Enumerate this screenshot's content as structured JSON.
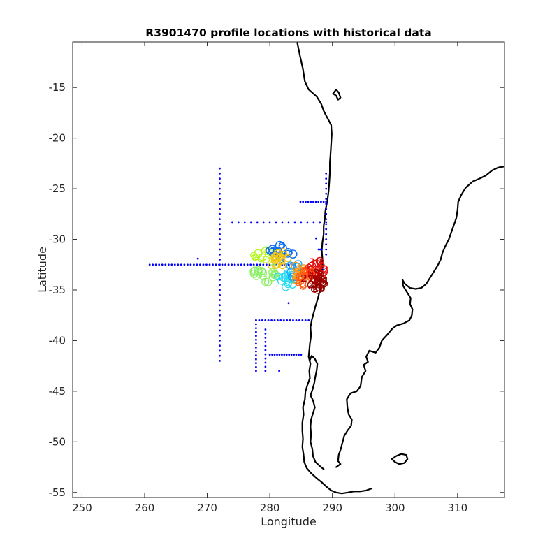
{
  "chart_data": {
    "type": "scatter",
    "title": "R3901470 profile locations with historical data",
    "xlabel": "Longitude",
    "ylabel": "Latitude",
    "xlim": [
      248.5,
      317.5
    ],
    "ylim": [
      -55.5,
      -10.5
    ],
    "xticks": [
      250,
      260,
      270,
      280,
      290,
      300,
      310
    ],
    "yticks": [
      -55,
      -50,
      -45,
      -40,
      -35,
      -30,
      -25,
      -20,
      -15
    ],
    "grid": false,
    "colors": {
      "coastline": "#000000",
      "historical": "#0000ff",
      "axes": "#262626"
    },
    "coastlines": [
      {
        "name": "south-america-west",
        "points": [
          [
            284.4,
            -10.6
          ],
          [
            284.8,
            -11.8
          ],
          [
            285.3,
            -13.2
          ],
          [
            285.6,
            -14.4
          ],
          [
            286.2,
            -15.2
          ],
          [
            287.5,
            -15.9
          ],
          [
            288.2,
            -16.6
          ],
          [
            288.6,
            -17.3
          ],
          [
            289.2,
            -18.0
          ],
          [
            289.8,
            -18.7
          ],
          [
            289.9,
            -19.6
          ],
          [
            289.8,
            -20.6
          ],
          [
            289.7,
            -21.6
          ],
          [
            289.6,
            -22.4
          ],
          [
            289.6,
            -23.4
          ],
          [
            289.5,
            -24.4
          ],
          [
            289.4,
            -25.2
          ],
          [
            289.2,
            -26.2
          ],
          [
            288.9,
            -27.1
          ],
          [
            288.8,
            -27.9
          ],
          [
            288.6,
            -28.7
          ],
          [
            288.6,
            -29.5
          ],
          [
            288.4,
            -30.3
          ],
          [
            288.3,
            -31.1
          ],
          [
            288.4,
            -31.9
          ],
          [
            288.4,
            -32.7
          ],
          [
            288.3,
            -33.4
          ],
          [
            288.2,
            -34.2
          ],
          [
            288.0,
            -35.0
          ],
          [
            287.7,
            -35.8
          ],
          [
            287.3,
            -36.6
          ],
          [
            287.0,
            -37.3
          ],
          [
            286.7,
            -38.0
          ],
          [
            286.5,
            -38.7
          ],
          [
            286.6,
            -39.5
          ],
          [
            286.4,
            -40.3
          ],
          [
            286.3,
            -41.0
          ],
          [
            286.2,
            -41.6
          ],
          [
            286.5,
            -42.3
          ],
          [
            286.3,
            -43.0
          ],
          [
            286.4,
            -43.7
          ],
          [
            286.0,
            -44.4
          ],
          [
            285.7,
            -45.0
          ],
          [
            285.6,
            -45.8
          ],
          [
            285.3,
            -46.6
          ],
          [
            285.4,
            -47.3
          ],
          [
            285.2,
            -48.1
          ],
          [
            285.2,
            -48.9
          ],
          [
            285.3,
            -49.7
          ],
          [
            285.2,
            -50.5
          ],
          [
            285.4,
            -51.3
          ],
          [
            285.5,
            -52.0
          ],
          [
            285.9,
            -52.6
          ],
          [
            286.6,
            -53.1
          ],
          [
            287.5,
            -53.6
          ],
          [
            288.3,
            -54.0
          ],
          [
            289.0,
            -54.4
          ],
          [
            289.8,
            -54.8
          ],
          [
            290.6,
            -55.0
          ],
          [
            291.5,
            -55.1
          ],
          [
            292.5,
            -55.0
          ],
          [
            293.4,
            -54.9
          ],
          [
            294.4,
            -54.9
          ],
          [
            295.4,
            -54.8
          ],
          [
            296.3,
            -54.6
          ]
        ]
      },
      {
        "name": "chiloe-and-fjords",
        "points": [
          [
            286.4,
            -41.9
          ],
          [
            286.7,
            -41.5
          ],
          [
            287.2,
            -41.8
          ],
          [
            287.6,
            -42.3
          ],
          [
            287.5,
            -42.9
          ],
          [
            287.3,
            -43.5
          ],
          [
            287.1,
            -44.2
          ],
          [
            286.8,
            -44.9
          ],
          [
            286.5,
            -45.4
          ],
          [
            286.9,
            -45.9
          ],
          [
            287.2,
            -46.6
          ],
          [
            286.9,
            -47.2
          ],
          [
            286.6,
            -47.8
          ],
          [
            286.5,
            -48.5
          ],
          [
            286.6,
            -49.3
          ],
          [
            286.5,
            -50.0
          ],
          [
            286.8,
            -50.7
          ],
          [
            286.9,
            -51.4
          ],
          [
            287.3,
            -52.0
          ],
          [
            288.0,
            -52.4
          ],
          [
            288.6,
            -52.7
          ]
        ]
      },
      {
        "name": "south-america-east",
        "points": [
          [
            317.5,
            -22.8
          ],
          [
            316.5,
            -22.9
          ],
          [
            315.5,
            -23.2
          ],
          [
            314.5,
            -23.7
          ],
          [
            313.5,
            -24.0
          ],
          [
            312.4,
            -24.3
          ],
          [
            311.3,
            -24.9
          ],
          [
            310.6,
            -25.6
          ],
          [
            310.1,
            -26.3
          ],
          [
            310.0,
            -27.1
          ],
          [
            309.8,
            -27.9
          ],
          [
            309.4,
            -28.6
          ],
          [
            309.0,
            -29.3
          ],
          [
            308.6,
            -30.0
          ],
          [
            308.1,
            -30.6
          ],
          [
            307.6,
            -31.3
          ],
          [
            307.3,
            -32.0
          ],
          [
            306.8,
            -32.6
          ],
          [
            306.2,
            -33.2
          ],
          [
            305.6,
            -33.8
          ],
          [
            305.0,
            -34.4
          ],
          [
            304.2,
            -34.8
          ],
          [
            303.3,
            -34.9
          ],
          [
            302.4,
            -34.8
          ],
          [
            301.6,
            -34.4
          ],
          [
            301.2,
            -34.0
          ],
          [
            301.3,
            -34.6
          ],
          [
            301.9,
            -35.2
          ],
          [
            302.5,
            -35.8
          ],
          [
            302.4,
            -36.4
          ],
          [
            302.8,
            -36.9
          ],
          [
            302.7,
            -37.5
          ],
          [
            302.3,
            -38.0
          ],
          [
            301.4,
            -38.3
          ],
          [
            300.3,
            -38.5
          ],
          [
            299.6,
            -38.8
          ],
          [
            298.8,
            -39.4
          ],
          [
            297.9,
            -40.0
          ],
          [
            297.5,
            -40.7
          ],
          [
            296.9,
            -41.2
          ],
          [
            295.9,
            -41.0
          ],
          [
            295.4,
            -41.6
          ],
          [
            295.7,
            -42.1
          ],
          [
            295.0,
            -42.4
          ],
          [
            295.3,
            -43.0
          ],
          [
            294.7,
            -43.6
          ],
          [
            294.5,
            -44.5
          ],
          [
            293.9,
            -45.0
          ],
          [
            292.9,
            -45.2
          ],
          [
            292.3,
            -45.8
          ],
          [
            292.4,
            -46.6
          ],
          [
            292.6,
            -47.3
          ],
          [
            293.1,
            -47.8
          ],
          [
            293.0,
            -48.4
          ],
          [
            292.4,
            -48.9
          ],
          [
            291.9,
            -49.4
          ],
          [
            291.6,
            -50.1
          ],
          [
            291.3,
            -50.8
          ],
          [
            291.0,
            -51.3
          ],
          [
            290.9,
            -51.9
          ],
          [
            291.3,
            -52.2
          ],
          [
            290.6,
            -52.5
          ]
        ]
      },
      {
        "name": "falklands",
        "points": [
          [
            300.2,
            -51.4
          ],
          [
            301.0,
            -51.2
          ],
          [
            301.8,
            -51.3
          ],
          [
            302.0,
            -51.7
          ],
          [
            301.5,
            -52.1
          ],
          [
            300.7,
            -52.2
          ],
          [
            300.0,
            -52.0
          ],
          [
            299.5,
            -51.7
          ],
          [
            300.2,
            -51.4
          ]
        ]
      },
      {
        "name": "lake-titicaca",
        "points": [
          [
            290.6,
            -15.2
          ],
          [
            291.0,
            -15.5
          ],
          [
            291.3,
            -16.0
          ],
          [
            290.9,
            -16.2
          ],
          [
            290.6,
            -15.8
          ],
          [
            290.1,
            -15.6
          ],
          [
            290.6,
            -15.2
          ]
        ]
      }
    ],
    "historical_lines": [
      {
        "from": [
          272.0,
          -23.0
        ],
        "to": [
          272.0,
          -42.0
        ],
        "step": 0.5
      },
      {
        "from": [
          260.8,
          -32.5
        ],
        "to": [
          284.0,
          -32.5
        ],
        "step": 0.5
      },
      {
        "from": [
          274.0,
          -28.3
        ],
        "to": [
          289.0,
          -28.3
        ],
        "step": 1.0
      },
      {
        "from": [
          284.9,
          -26.3
        ],
        "to": [
          289.0,
          -26.3
        ],
        "step": 0.4
      },
      {
        "from": [
          277.8,
          -38.0
        ],
        "to": [
          286.2,
          -38.0
        ],
        "step": 0.5
      },
      {
        "from": [
          277.8,
          -38.0
        ],
        "to": [
          277.8,
          -43.0
        ],
        "step": 0.4
      },
      {
        "from": [
          279.3,
          -38.9
        ],
        "to": [
          279.3,
          -43.0
        ],
        "step": 0.4
      },
      {
        "from": [
          280.0,
          -41.4
        ],
        "to": [
          285.0,
          -41.4
        ],
        "step": 0.4
      },
      {
        "from": [
          289.0,
          -23.5
        ],
        "to": [
          289.0,
          -31.5
        ],
        "step": 0.5
      },
      {
        "from": [
          287.8,
          -31.0
        ],
        "to": [
          288.3,
          -31.0
        ],
        "step": 0.25
      }
    ],
    "historical_points": [
      [
        268.5,
        -31.9
      ],
      [
        281.5,
        -43.0
      ],
      [
        283.0,
        -36.3
      ],
      [
        288.4,
        -34.0
      ],
      [
        288.6,
        -33.0
      ],
      [
        287.4,
        -29.9
      ]
    ],
    "profile_clusters": [
      {
        "cx": 279.2,
        "cy": -31.6,
        "rx": 2.4,
        "ry": 0.7,
        "count": 16,
        "color": "#b5f71c"
      },
      {
        "cx": 281.8,
        "cy": -31.3,
        "rx": 2.0,
        "ry": 0.8,
        "count": 18,
        "color": "#0a6af2"
      },
      {
        "cx": 281.2,
        "cy": -31.9,
        "rx": 1.9,
        "ry": 0.9,
        "count": 18,
        "color": "#f5c611"
      },
      {
        "cx": 279.3,
        "cy": -33.4,
        "rx": 1.9,
        "ry": 0.9,
        "count": 18,
        "color": "#8cf066"
      },
      {
        "cx": 282.6,
        "cy": -34.1,
        "rx": 1.6,
        "ry": 0.9,
        "count": 14,
        "color": "#25dcf0"
      },
      {
        "cx": 283.8,
        "cy": -33.1,
        "rx": 1.4,
        "ry": 0.8,
        "count": 12,
        "color": "#16a3f2"
      },
      {
        "cx": 284.9,
        "cy": -33.3,
        "rx": 1.4,
        "ry": 0.8,
        "count": 16,
        "color": "#ff9a12"
      },
      {
        "cx": 285.8,
        "cy": -33.9,
        "rx": 1.4,
        "ry": 1.0,
        "count": 18,
        "color": "#ff5a14"
      },
      {
        "cx": 287.4,
        "cy": -33.0,
        "rx": 1.3,
        "ry": 1.1,
        "count": 20,
        "color": "#e8110c"
      },
      {
        "cx": 287.6,
        "cy": -34.2,
        "rx": 1.2,
        "ry": 1.0,
        "count": 20,
        "color": "#a30000"
      }
    ],
    "profile_labels": [
      {
        "text": "2",
        "x": 285.4,
        "y": -33.5,
        "color": "#ff6a14"
      },
      {
        "text": "25",
        "x": 286.3,
        "y": -33.6,
        "color": "#ff4a10"
      },
      {
        "text": "30",
        "x": 287.3,
        "y": -32.6,
        "color": "#e01010"
      },
      {
        "text": "27",
        "x": 286.0,
        "y": -34.2,
        "color": "#b00000"
      },
      {
        "text": "1",
        "x": 287.8,
        "y": -33.9,
        "color": "#c00000"
      },
      {
        "text": "20",
        "x": 287.2,
        "y": -34.8,
        "color": "#900000"
      },
      {
        "text": "24",
        "x": 288.3,
        "y": -34.5,
        "color": "#900000"
      },
      {
        "text": "29",
        "x": 287.8,
        "y": -35.2,
        "color": "#8b0000"
      }
    ]
  }
}
